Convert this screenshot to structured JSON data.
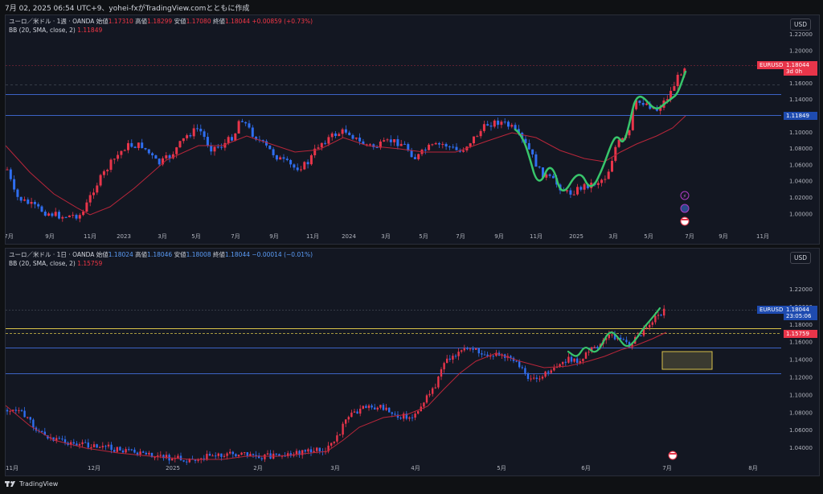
{
  "header": {
    "text": "7月 02, 2025 06:54 UTC+9、yohei-fxがTradingView.comとともに作成"
  },
  "pane1": {
    "symbol": "ユーロ／米ドル · 1週 · OANDA",
    "open_label": "始値",
    "open": "1.17310",
    "high_label": "高値",
    "high": "1.18299",
    "low_label": "安値",
    "low": "1.17080",
    "close_label": "終値",
    "close": "1.18044",
    "change": "+0.00859 (+0.73%)",
    "indicator": "BB (20, SMA, close, 2)",
    "indicator_value": "1.11849",
    "currency_button": "USD",
    "ticker": "EURUSD",
    "last_price": "1.18044",
    "countdown": "3d 0h",
    "bb_price": "1.11849",
    "price_ticks": [
      "1.22000",
      "1.20000",
      "1.18000",
      "1.16000",
      "1.14000",
      "1.12000",
      "1.10000",
      "1.08000",
      "1.06000",
      "1.04000",
      "1.02000",
      "1.00000"
    ],
    "time_ticks": [
      "7月",
      "9月",
      "11月",
      "2023",
      "3月",
      "5月",
      "7月",
      "9月",
      "11月",
      "2024",
      "3月",
      "5月",
      "7月",
      "9月",
      "11月",
      "2025",
      "3月",
      "5月",
      "7月",
      "9月",
      "11月"
    ]
  },
  "pane2": {
    "symbol": "ユーロ／米ドル · 1日 · OANDA",
    "open_label": "始値",
    "open": "1.18024",
    "high_label": "高値",
    "high": "1.18046",
    "low_label": "安値",
    "low": "1.18008",
    "close_label": "終値",
    "close": "1.18044",
    "change": "−0.00014 (−0.01%)",
    "indicator": "BB (20, SMA, close, 2)",
    "indicator_value": "1.15759",
    "currency_button": "USD",
    "ticker": "EURUSD",
    "last_price": "1.18044",
    "countdown": "23:05:06",
    "bb_price": "1.15759",
    "price_ticks": [
      "1.22000",
      "1.20000",
      "1.18000",
      "1.16000",
      "1.14000",
      "1.12000",
      "1.10000",
      "1.08000",
      "1.06000",
      "1.04000"
    ],
    "time_ticks": [
      "11月",
      "12月",
      "2025",
      "2月",
      "3月",
      "4月",
      "5月",
      "6月",
      "7月",
      "8月"
    ]
  },
  "footer": {
    "brand": "TradingView"
  },
  "colors": {
    "up": "#e8354a",
    "down": "#2f6ef0",
    "bb": "#b8263a",
    "green": "#38c56b",
    "hline": "#3c63c5",
    "yellow": "#d8c24a"
  }
}
